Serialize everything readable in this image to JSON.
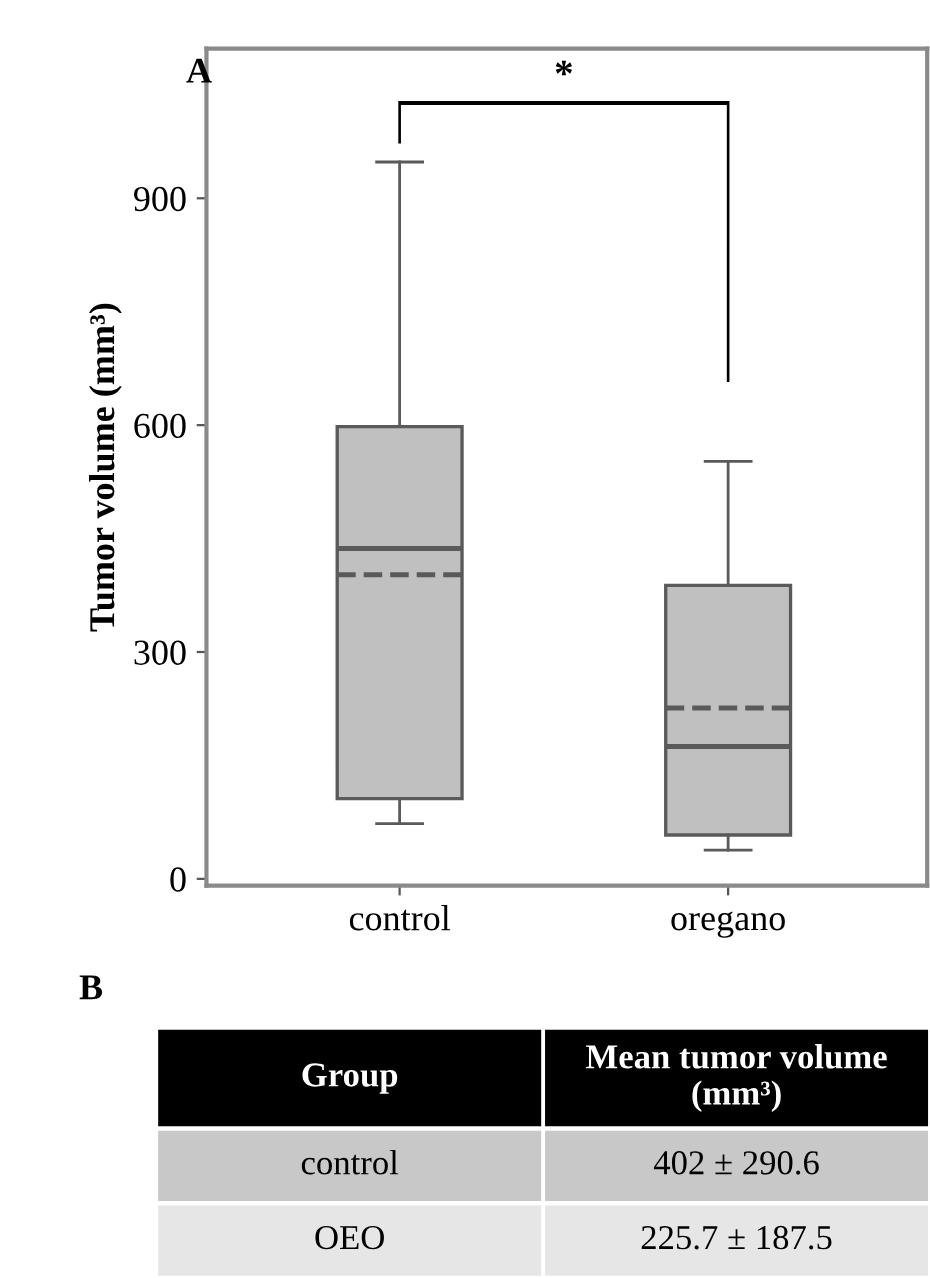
{
  "chart_data": [
    {
      "type": "box",
      "title": "A",
      "ylabel": "Tumor volume (mm³)",
      "categories": [
        "control",
        "oregano"
      ],
      "boxes": [
        {
          "low": 73,
          "q1": 106,
          "median": 437,
          "q3": 598,
          "high": 948,
          "mean": 402
        },
        {
          "low": 38,
          "q1": 58,
          "median": 175,
          "q3": 388,
          "high": 552,
          "mean": 226
        }
      ],
      "color": "#c0c0c0",
      "ylim": [
        -9,
        1098
      ],
      "yticks": [
        0,
        300,
        600,
        900
      ],
      "grid": false,
      "annotations": [
        "*"
      ]
    },
    {
      "type": "other",
      "title": "B",
      "annotations": [
        "Group",
        "Mean tumor volume (mm³)",
        "control",
        "402 ± 290.6",
        "OEO",
        "225.7 ± 187.5"
      ]
    }
  ]
}
